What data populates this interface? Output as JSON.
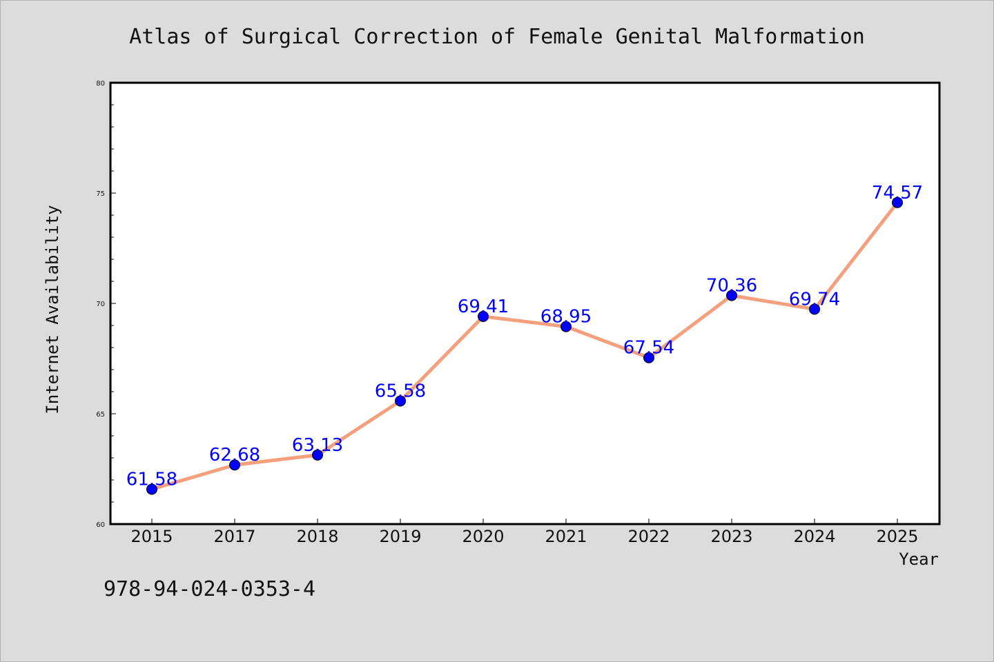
{
  "title": "Atlas of Surgical Correction of Female Genital Malformation",
  "isbn": "978-94-024-0353-4",
  "colors": {
    "background": "#dcdcdc",
    "plot_background": "#ffffff",
    "line": "#f4a07c",
    "marker": "#0000ff",
    "label": "#0000ff"
  },
  "chart_data": {
    "type": "line",
    "title": "Atlas of Surgical Correction of Female Genital Malformation",
    "xlabel": "Year",
    "ylabel": "Internet Availability",
    "categories": [
      "2015",
      "2017",
      "2018",
      "2019",
      "2020",
      "2021",
      "2022",
      "2023",
      "2024",
      "2025"
    ],
    "values": [
      61.58,
      62.68,
      63.13,
      65.58,
      69.41,
      68.95,
      67.54,
      70.36,
      69.74,
      74.57
    ],
    "value_labels": [
      "61.58",
      "62.68",
      "63.13",
      "65.58",
      "69.41",
      "68.95",
      "67.54",
      "70.36",
      "69.74",
      "74.57"
    ],
    "ylim": [
      60,
      80
    ],
    "yticks": [
      60,
      65,
      70,
      75,
      80
    ],
    "ytick_labels": [
      "60",
      "65",
      "70",
      "75",
      "80"
    ],
    "minor_ytick_step": 1,
    "grid": false,
    "legend": "none"
  }
}
